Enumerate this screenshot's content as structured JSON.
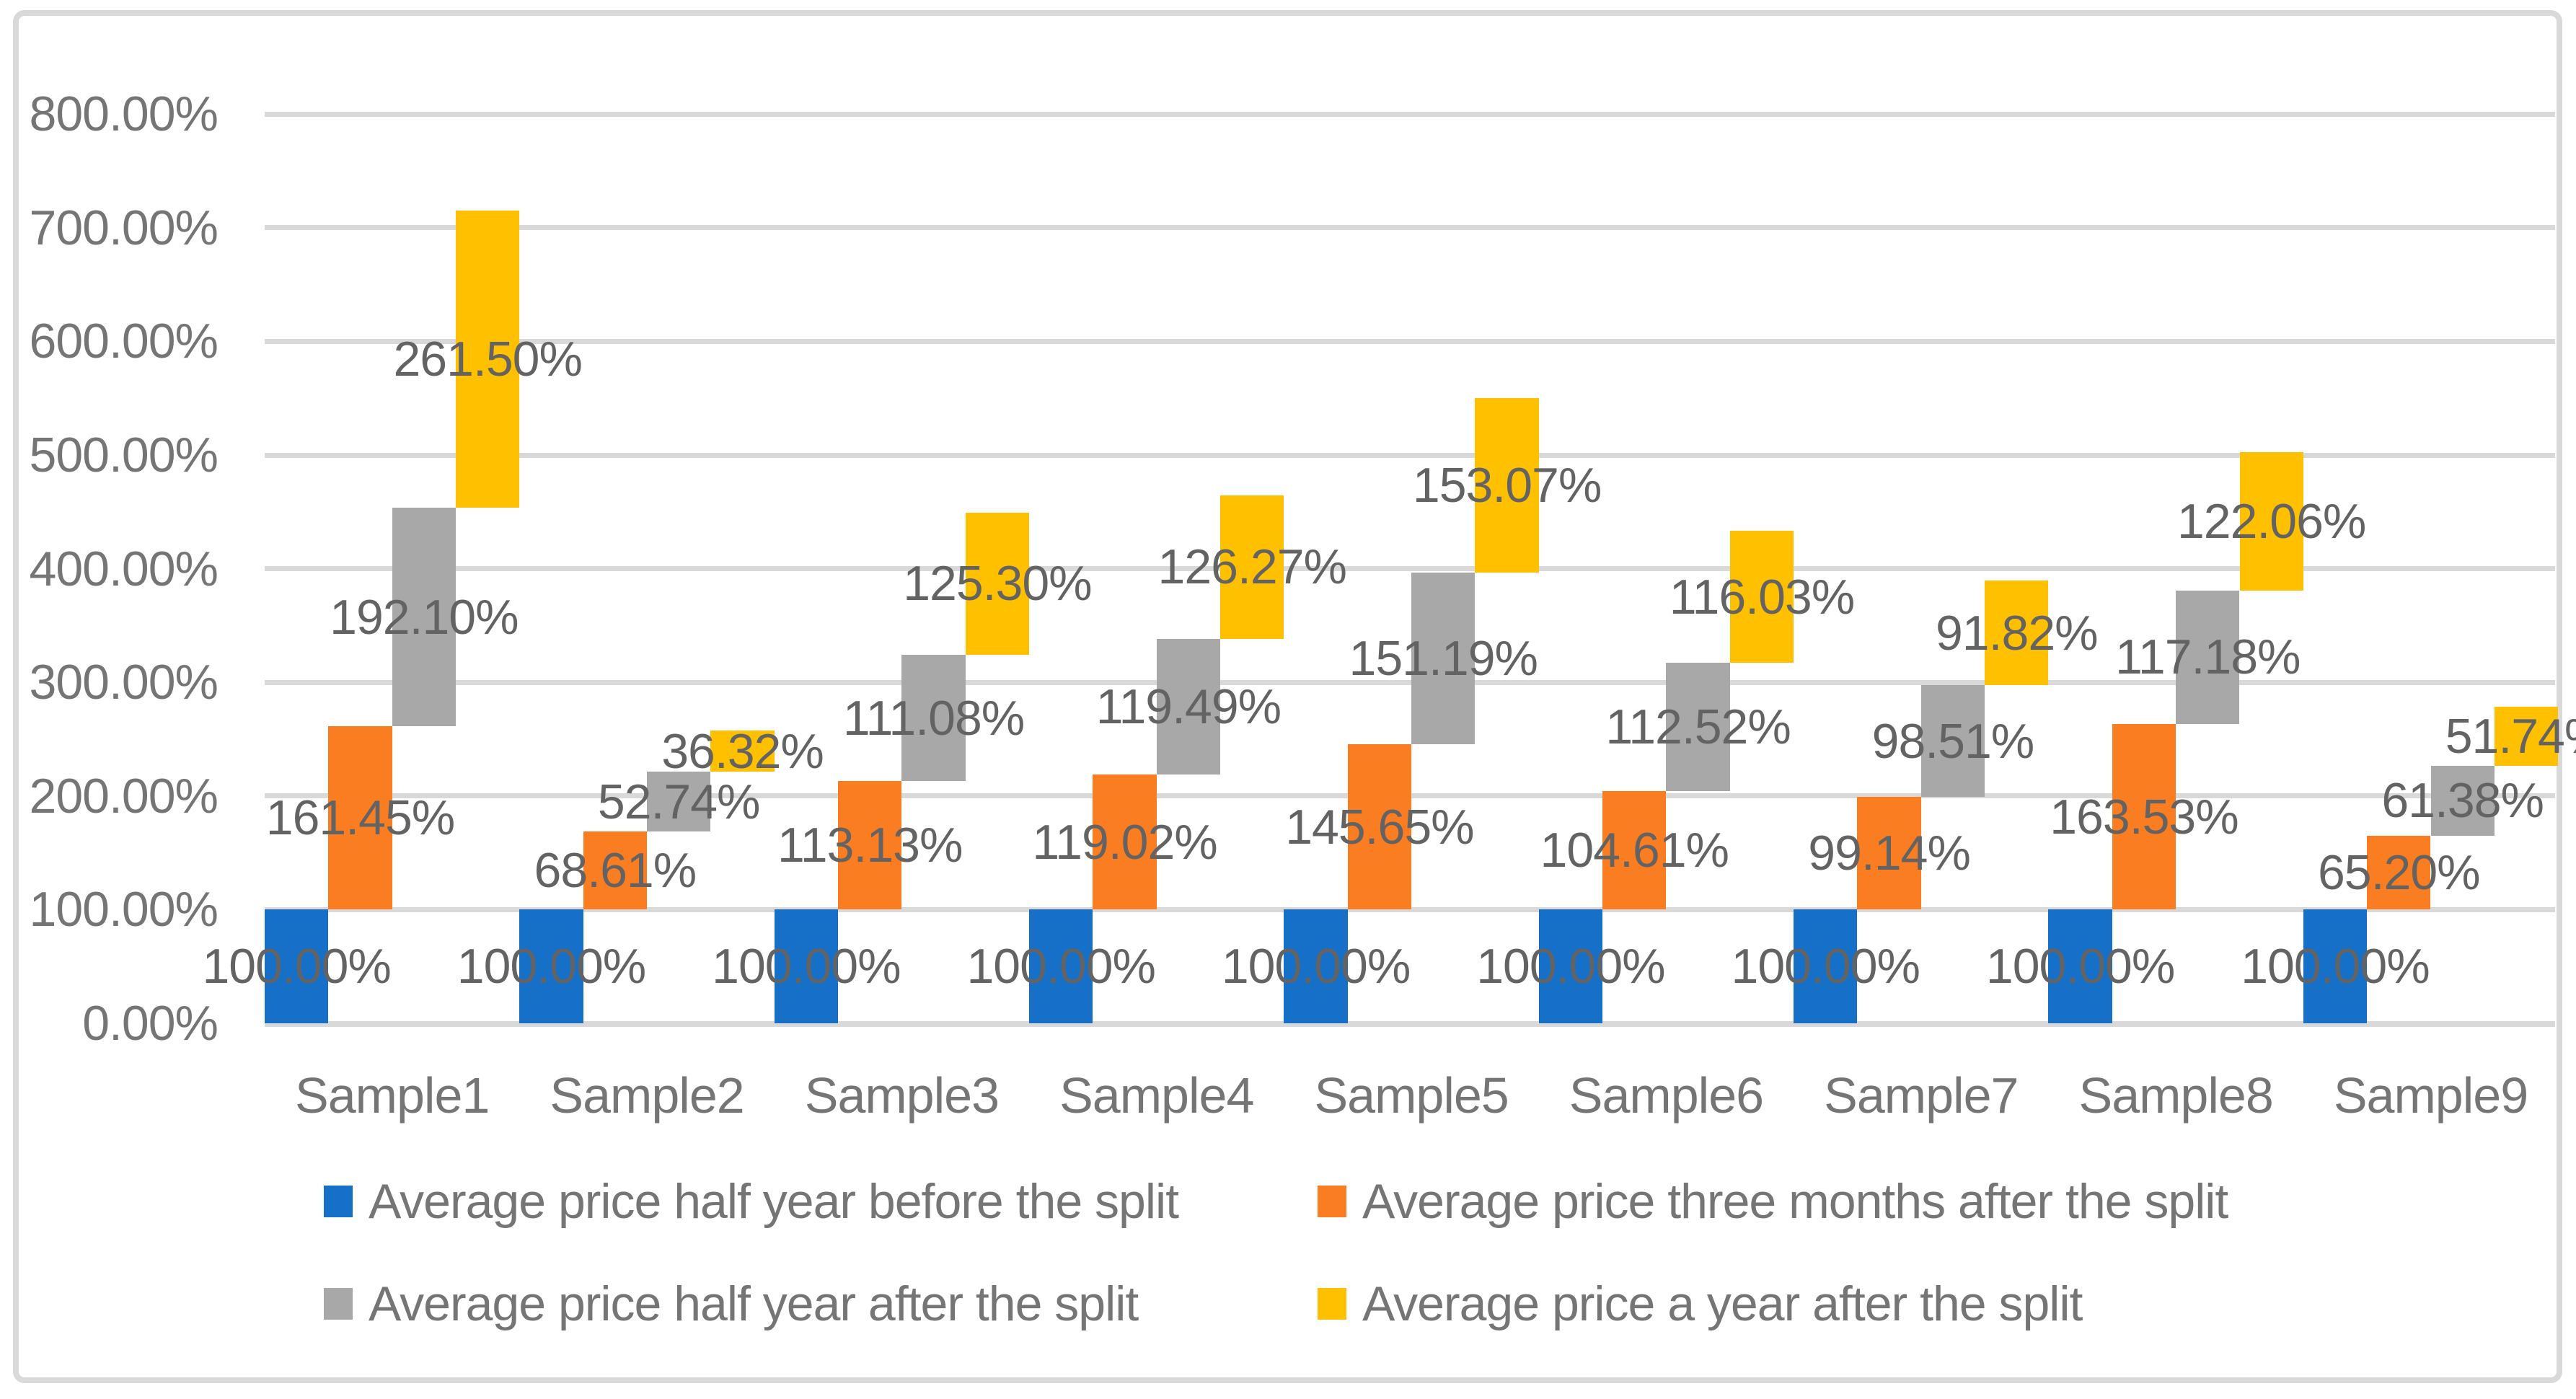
{
  "colors": {
    "blue": "#1670C8",
    "orange": "#FB7D21",
    "gray": "#A8A8A8",
    "yellow": "#FFC000",
    "gridline": "#D9D9D9",
    "panel_border": "#D9D9D9",
    "axis_text": "#757575",
    "data_label_text": "#636363",
    "legend_text": "#757575"
  },
  "chart_data": {
    "type": "bar",
    "subtype": "clustered-cumulative-stack",
    "title": "",
    "xlabel": "",
    "ylabel": "",
    "grid": true,
    "categories": [
      "Sample1",
      "Sample2",
      "Sample3",
      "Sample4",
      "Sample5",
      "Sample6",
      "Sample7",
      "Sample8",
      "Sample9"
    ],
    "series": [
      {
        "name": "Average price half year before the split",
        "color": "#1670C8",
        "values": [
          100.0,
          100.0,
          100.0,
          100.0,
          100.0,
          100.0,
          100.0,
          100.0,
          100.0
        ]
      },
      {
        "name": "Average price three months after the split",
        "color": "#FB7D21",
        "values": [
          161.45,
          68.61,
          113.13,
          119.02,
          145.65,
          104.61,
          99.14,
          163.53,
          65.2
        ]
      },
      {
        "name": "Average price half year after the split",
        "color": "#A8A8A8",
        "values": [
          192.1,
          52.74,
          111.08,
          119.49,
          151.19,
          112.52,
          98.51,
          117.18,
          61.38
        ]
      },
      {
        "name": "Average price a year after the split",
        "color": "#FFC000",
        "values": [
          261.5,
          36.32,
          125.3,
          126.27,
          153.07,
          116.03,
          91.82,
          122.06,
          51.74
        ]
      }
    ],
    "data_labels": {
      "format": "0.00%",
      "position": "center"
    },
    "y_axis": {
      "min": 0,
      "max": 800,
      "step": 100,
      "tick_labels": [
        "0.00%",
        "100.00%",
        "200.00%",
        "300.00%",
        "400.00%",
        "500.00%",
        "600.00%",
        "700.00%",
        "800.00%"
      ]
    },
    "legend": {
      "position": "bottom",
      "columns": 2,
      "entries": [
        "Average price half year before the split",
        "Average price three months after the split",
        "Average price half year after the split",
        "Average price a year after the split"
      ]
    }
  }
}
